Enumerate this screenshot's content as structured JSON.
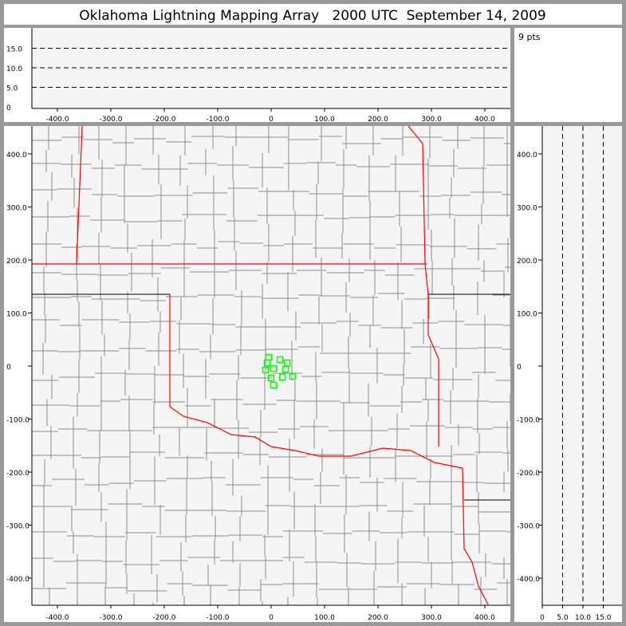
{
  "title": "Oklahoma Lightning Mapping Array   2000 UTC  September 14, 2009",
  "point_count_label": "9 pts",
  "colors": {
    "state_border": "#ff0000",
    "county_border": "#8c8c8c",
    "source_marker": "#00ff00",
    "plot_bg": "#f4f4f4",
    "frame": "#999999"
  },
  "chart_data": [
    {
      "type": "line",
      "panel": "altitude-vs-east-west",
      "xlim": [
        -450,
        450
      ],
      "ylim": [
        0,
        20
      ],
      "x_ticks": [
        "-400.0",
        "-300.0",
        "-200.0",
        "-100.0",
        "0",
        "100.0",
        "200.0",
        "300.0",
        "400.0"
      ],
      "y_ticks": [
        "0",
        "5.0",
        "10.0",
        "15.0"
      ],
      "reference_lines": [
        5,
        10,
        15
      ]
    },
    {
      "type": "scatter",
      "panel": "plan-view-map",
      "xlim": [
        -450,
        450
      ],
      "ylim": [
        -450,
        450
      ],
      "x_ticks": [
        "-400.0",
        "-300.0",
        "-200.0",
        "-100.0",
        "0",
        "100.0",
        "200.0",
        "300.0",
        "400.0"
      ],
      "y_ticks": [
        "400.0",
        "300.0",
        "200.0",
        "100.0",
        "0",
        "-100.0",
        "-200.0",
        "-300.0",
        "-400.0"
      ],
      "points": [
        [
          -4.5,
          16.5
        ],
        [
          -7.5,
          6
        ],
        [
          16.4,
          12
        ],
        [
          30,
          6
        ],
        [
          -10.4,
          -7.5
        ],
        [
          4.5,
          -4.5
        ],
        [
          27,
          -6
        ],
        [
          0,
          -22.6
        ],
        [
          21,
          -21
        ],
        [
          40,
          -19.5
        ],
        [
          4.5,
          -36
        ]
      ]
    },
    {
      "type": "line",
      "panel": "altitude-vs-north-south",
      "xlim": [
        0,
        20
      ],
      "ylim": [
        -450,
        450
      ],
      "x_ticks": [
        "0",
        "5.0",
        "10.0",
        "15.0"
      ],
      "y_ticks": [
        "400.0",
        "300.0",
        "200.0",
        "100.0",
        "0",
        "-100.0",
        "-200.0",
        "-300.0",
        "-400.0"
      ],
      "reference_lines": [
        5,
        10,
        15
      ]
    }
  ]
}
